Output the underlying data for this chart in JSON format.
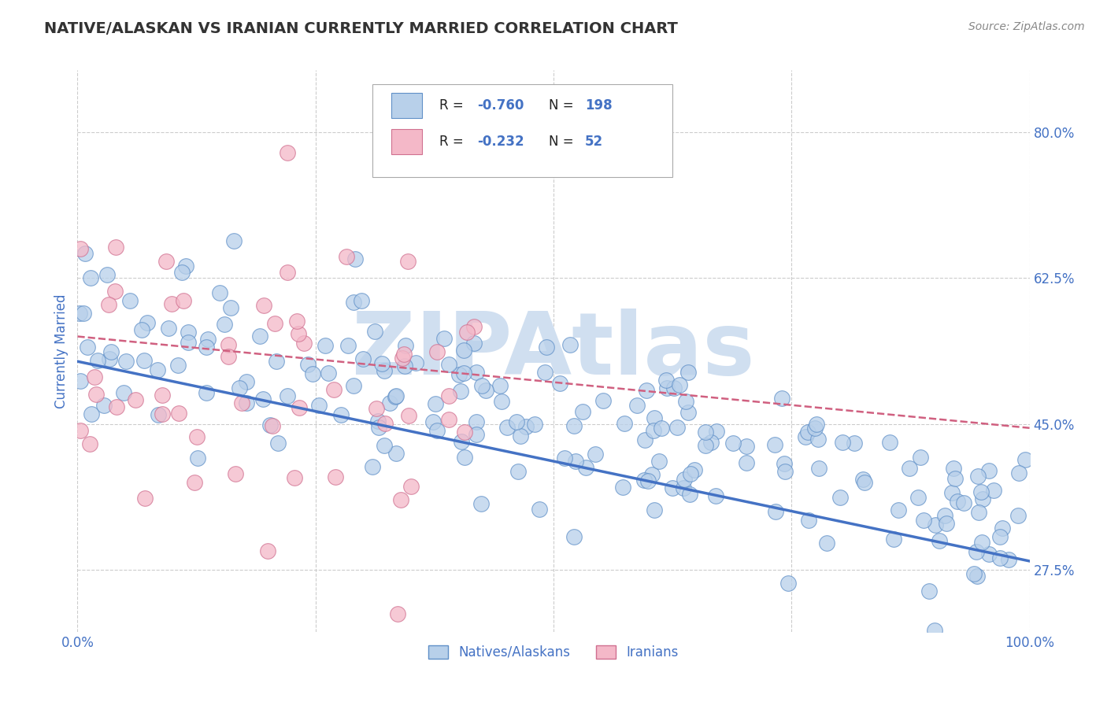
{
  "title": "NATIVE/ALASKAN VS IRANIAN CURRENTLY MARRIED CORRELATION CHART",
  "source_text": "Source: ZipAtlas.com",
  "ylabel": "Currently Married",
  "xlabel": "",
  "xlim": [
    0.0,
    1.0
  ],
  "ylim": [
    0.2,
    0.875
  ],
  "yticks": [
    0.275,
    0.45,
    0.625,
    0.8
  ],
  "ytick_labels": [
    "27.5%",
    "45.0%",
    "62.5%",
    "80.0%"
  ],
  "xticks": [
    0.0,
    1.0
  ],
  "xtick_labels": [
    "0.0%",
    "100.0%"
  ],
  "blue_color": "#b8d0ea",
  "blue_edge_color": "#6090c8",
  "blue_line_color": "#4472c4",
  "pink_color": "#f4b8c8",
  "pink_edge_color": "#d07090",
  "pink_line_color": "#d06080",
  "R_color": "#4472c4",
  "N_color": "#4472c4",
  "label_text_color": "#333333",
  "watermark": "ZIPAtlas",
  "watermark_color": "#d0dff0",
  "title_color": "#333333",
  "axis_label_color": "#4472c4",
  "grid_color": "#cccccc",
  "background_color": "#ffffff",
  "R_blue": -0.76,
  "N_blue": 198,
  "R_pink": -0.232,
  "N_pink": 52,
  "blue_line_start_y": 0.525,
  "blue_line_end_y": 0.285,
  "pink_line_start_y": 0.555,
  "pink_line_end_y": 0.445,
  "pink_line_end_x": 1.0
}
